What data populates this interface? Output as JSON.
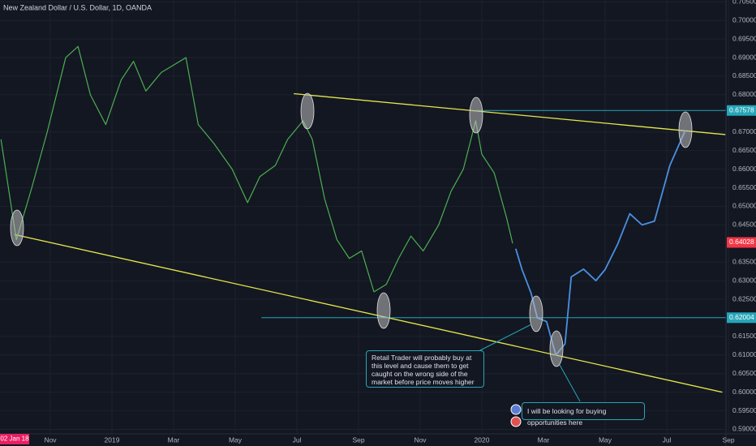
{
  "chart_data": {
    "type": "line",
    "title": "New Zealand Dollar / U.S. Dollar, 1D, OANDA",
    "cursor_date": "02 Jan 18",
    "xlim": [
      -1.63,
      22.3
    ],
    "ylim": [
      0.5888,
      0.7055
    ],
    "xticks": [
      {
        "value": 0,
        "label": "Nov"
      },
      {
        "value": 2,
        "label": "2019"
      },
      {
        "value": 4,
        "label": "Mar"
      },
      {
        "value": 6,
        "label": "May"
      },
      {
        "value": 8,
        "label": "Jul"
      },
      {
        "value": 10,
        "label": "Sep"
      },
      {
        "value": 12,
        "label": "Nov"
      },
      {
        "value": 14,
        "label": "2020"
      },
      {
        "value": 16,
        "label": "Mar"
      },
      {
        "value": 18,
        "label": "May"
      },
      {
        "value": 20,
        "label": "Jul"
      },
      {
        "value": 22,
        "label": "Sep"
      }
    ],
    "yticks": [
      {
        "value": 0.59,
        "label": "0.59000"
      },
      {
        "value": 0.595,
        "label": "0.59500"
      },
      {
        "value": 0.6,
        "label": "0.60000"
      },
      {
        "value": 0.605,
        "label": "0.60500"
      },
      {
        "value": 0.61,
        "label": "0.61000"
      },
      {
        "value": 0.615,
        "label": "0.61500"
      },
      {
        "value": 0.625,
        "label": "0.62500"
      },
      {
        "value": 0.63,
        "label": "0.63000"
      },
      {
        "value": 0.635,
        "label": "0.63500"
      },
      {
        "value": 0.645,
        "label": "0.64500"
      },
      {
        "value": 0.65,
        "label": "0.65000"
      },
      {
        "value": 0.655,
        "label": "0.65500"
      },
      {
        "value": 0.66,
        "label": "0.66000"
      },
      {
        "value": 0.665,
        "label": "0.66500"
      },
      {
        "value": 0.67,
        "label": "0.67000"
      },
      {
        "value": 0.68,
        "label": "0.68000"
      },
      {
        "value": 0.685,
        "label": "0.68500"
      },
      {
        "value": 0.69,
        "label": "0.69000"
      },
      {
        "value": 0.695,
        "label": "0.69500"
      },
      {
        "value": 0.7,
        "label": "0.70000"
      },
      {
        "value": 0.705,
        "label": "0.70500"
      }
    ],
    "grid": true,
    "series": [
      {
        "color": "#4caf50",
        "x": [
          -1.6,
          -1.1,
          -0.6,
          -0.1,
          0.5,
          0.9,
          1.3,
          1.8,
          2.3,
          2.7,
          3.1,
          3.6,
          4.0,
          4.4,
          4.8,
          5.3,
          5.9,
          6.4,
          6.8,
          7.3,
          7.7,
          8.2,
          8.5,
          8.9,
          9.3,
          9.7,
          10.1,
          10.5,
          10.9,
          11.3,
          11.7,
          12.1,
          12.6,
          13.0,
          13.4,
          13.8,
          14.0,
          14.4,
          14.8,
          15.0
        ],
        "values": [
          0.668,
          0.641,
          0.655,
          0.67,
          0.69,
          0.693,
          0.68,
          0.672,
          0.684,
          0.689,
          0.681,
          0.686,
          0.688,
          0.69,
          0.672,
          0.667,
          0.66,
          0.651,
          0.658,
          0.661,
          0.668,
          0.673,
          0.668,
          0.652,
          0.641,
          0.636,
          0.638,
          0.627,
          0.629,
          0.636,
          0.642,
          0.638,
          0.645,
          0.654,
          0.66,
          0.673,
          0.664,
          0.659,
          0.647,
          0.64
        ]
      },
      {
        "color": "#4a90e2",
        "x": [
          15.1,
          15.3,
          15.6,
          15.8,
          16.1,
          16.4,
          16.7,
          16.9,
          17.3,
          17.7,
          18.0,
          18.4,
          18.8,
          19.2,
          19.6,
          19.8,
          20.1,
          20.6
        ],
        "values": [
          0.6386,
          0.6331,
          0.6266,
          0.62,
          0.619,
          0.61,
          0.613,
          0.631,
          0.6331,
          0.63,
          0.633,
          0.6397,
          0.648,
          0.645,
          0.646,
          0.652,
          0.661,
          0.6704
        ]
      }
    ],
    "trendlines": [
      {
        "color": "#e6e84a",
        "x": [
          7.9,
          21.9
        ],
        "values": [
          0.6803,
          0.6693
        ]
      },
      {
        "color": "#e6e84a",
        "x": [
          -1.16,
          21.8
        ],
        "values": [
          0.6424,
          0.6
        ]
      }
    ],
    "levels": [
      {
        "color": "#26a6b8",
        "x_start": 13.8,
        "value": 0.67578
      },
      {
        "color": "#26a6b8",
        "x_start": 6.85,
        "value": 0.62004
      }
    ],
    "last_price": {
      "color": "#f23645",
      "value": 0.64028
    },
    "annotations": [
      "Retail Trader will probably buy at this level and cause them to get caught on the wrong side of the market before price moves higher",
      "I will be looking for buying opportunities here"
    ]
  }
}
